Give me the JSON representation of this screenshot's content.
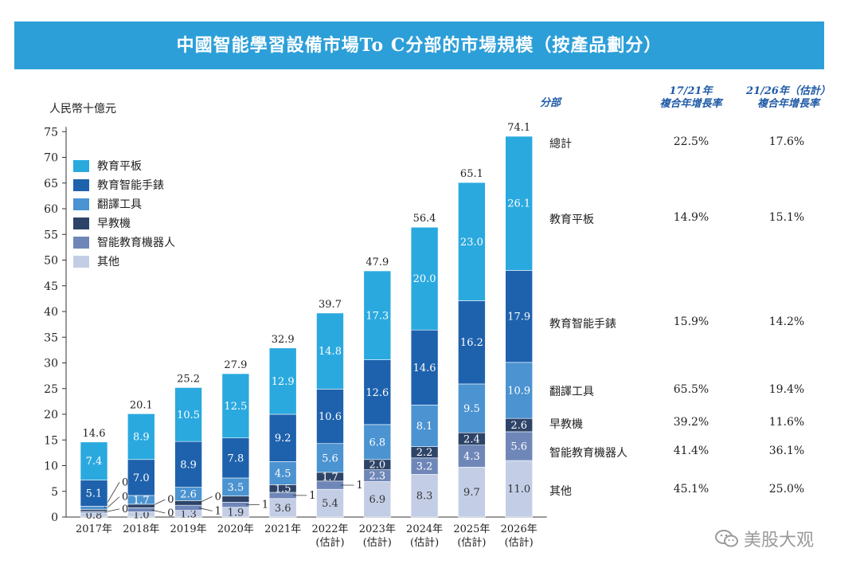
{
  "header": {
    "title": "中國智能學習設備市場To C分部的市場規模（按產品劃分）"
  },
  "chart_data": {
    "type": "bar",
    "stacked": true,
    "ylabel": "人民幣十億元",
    "ylim": [
      0,
      75
    ],
    "yticks": [
      0,
      5,
      10,
      15,
      20,
      25,
      30,
      35,
      40,
      45,
      50,
      55,
      60,
      65,
      70,
      75
    ],
    "categories": [
      "2017年",
      "2018年",
      "2019年",
      "2020年",
      "2021年",
      "2022年\n(估計)",
      "2023年\n(估計)",
      "2024年\n(估計)",
      "2025年\n(估計)",
      "2026年\n(估計)"
    ],
    "totals": [
      14.6,
      20.1,
      25.2,
      27.9,
      32.9,
      39.7,
      47.9,
      56.4,
      65.1,
      74.1
    ],
    "series": [
      {
        "name": "其他",
        "color": "#c3cee6",
        "values": [
          0.8,
          1.0,
          1.3,
          1.9,
          3.6,
          5.4,
          6.9,
          8.3,
          9.7,
          11.0
        ]
      },
      {
        "name": "智能教育機器人",
        "color": "#6f87b8",
        "values": [
          0.3,
          0.8,
          1.0,
          1.0,
          1.2,
          1.6,
          2.3,
          3.2,
          4.3,
          5.6
        ]
      },
      {
        "name": "早教機",
        "color": "#2d4468",
        "values": [
          0.4,
          0.7,
          0.9,
          1.2,
          1.5,
          1.7,
          2.0,
          2.2,
          2.4,
          2.6
        ]
      },
      {
        "name": "翻譯工具",
        "color": "#4b93d1",
        "values": [
          0.6,
          1.7,
          2.6,
          3.5,
          4.5,
          5.6,
          6.8,
          8.1,
          9.5,
          10.9
        ]
      },
      {
        "name": "教育智能手錶",
        "color": "#1e62ad",
        "values": [
          5.1,
          7.0,
          8.9,
          7.8,
          9.2,
          10.6,
          12.6,
          14.6,
          16.2,
          17.9
        ]
      },
      {
        "name": "教育平板",
        "color": "#2aa9df",
        "values": [
          7.4,
          8.9,
          10.5,
          12.5,
          12.9,
          14.8,
          17.3,
          20.0,
          23.0,
          26.1
        ]
      }
    ],
    "legend": [
      "教育平板",
      "教育智能手錶",
      "翻譯工具",
      "早教機",
      "智能教育機器人",
      "其他"
    ],
    "legend_position": "top-left"
  },
  "table": {
    "col_segment": "分部",
    "col_a": "17/21年\n複合年增長率",
    "col_b": "21/26年（估計）\n複合年增長率",
    "rows": [
      {
        "name": "總計",
        "a": "22.5%",
        "b": "17.6%"
      },
      {
        "name": "教育平板",
        "a": "14.9%",
        "b": "15.1%"
      },
      {
        "name": "教育智能手錶",
        "a": "15.9%",
        "b": "14.2%"
      },
      {
        "name": "翻譯工具",
        "a": "65.5%",
        "b": "19.4%"
      },
      {
        "name": "早教機",
        "a": "39.2%",
        "b": "11.6%"
      },
      {
        "name": "智能教育機器人",
        "a": "41.4%",
        "b": "36.1%"
      },
      {
        "name": "其他",
        "a": "45.1%",
        "b": "25.0%"
      }
    ]
  },
  "watermark": {
    "text": "美股大观",
    "icon": "wechat-icon"
  }
}
